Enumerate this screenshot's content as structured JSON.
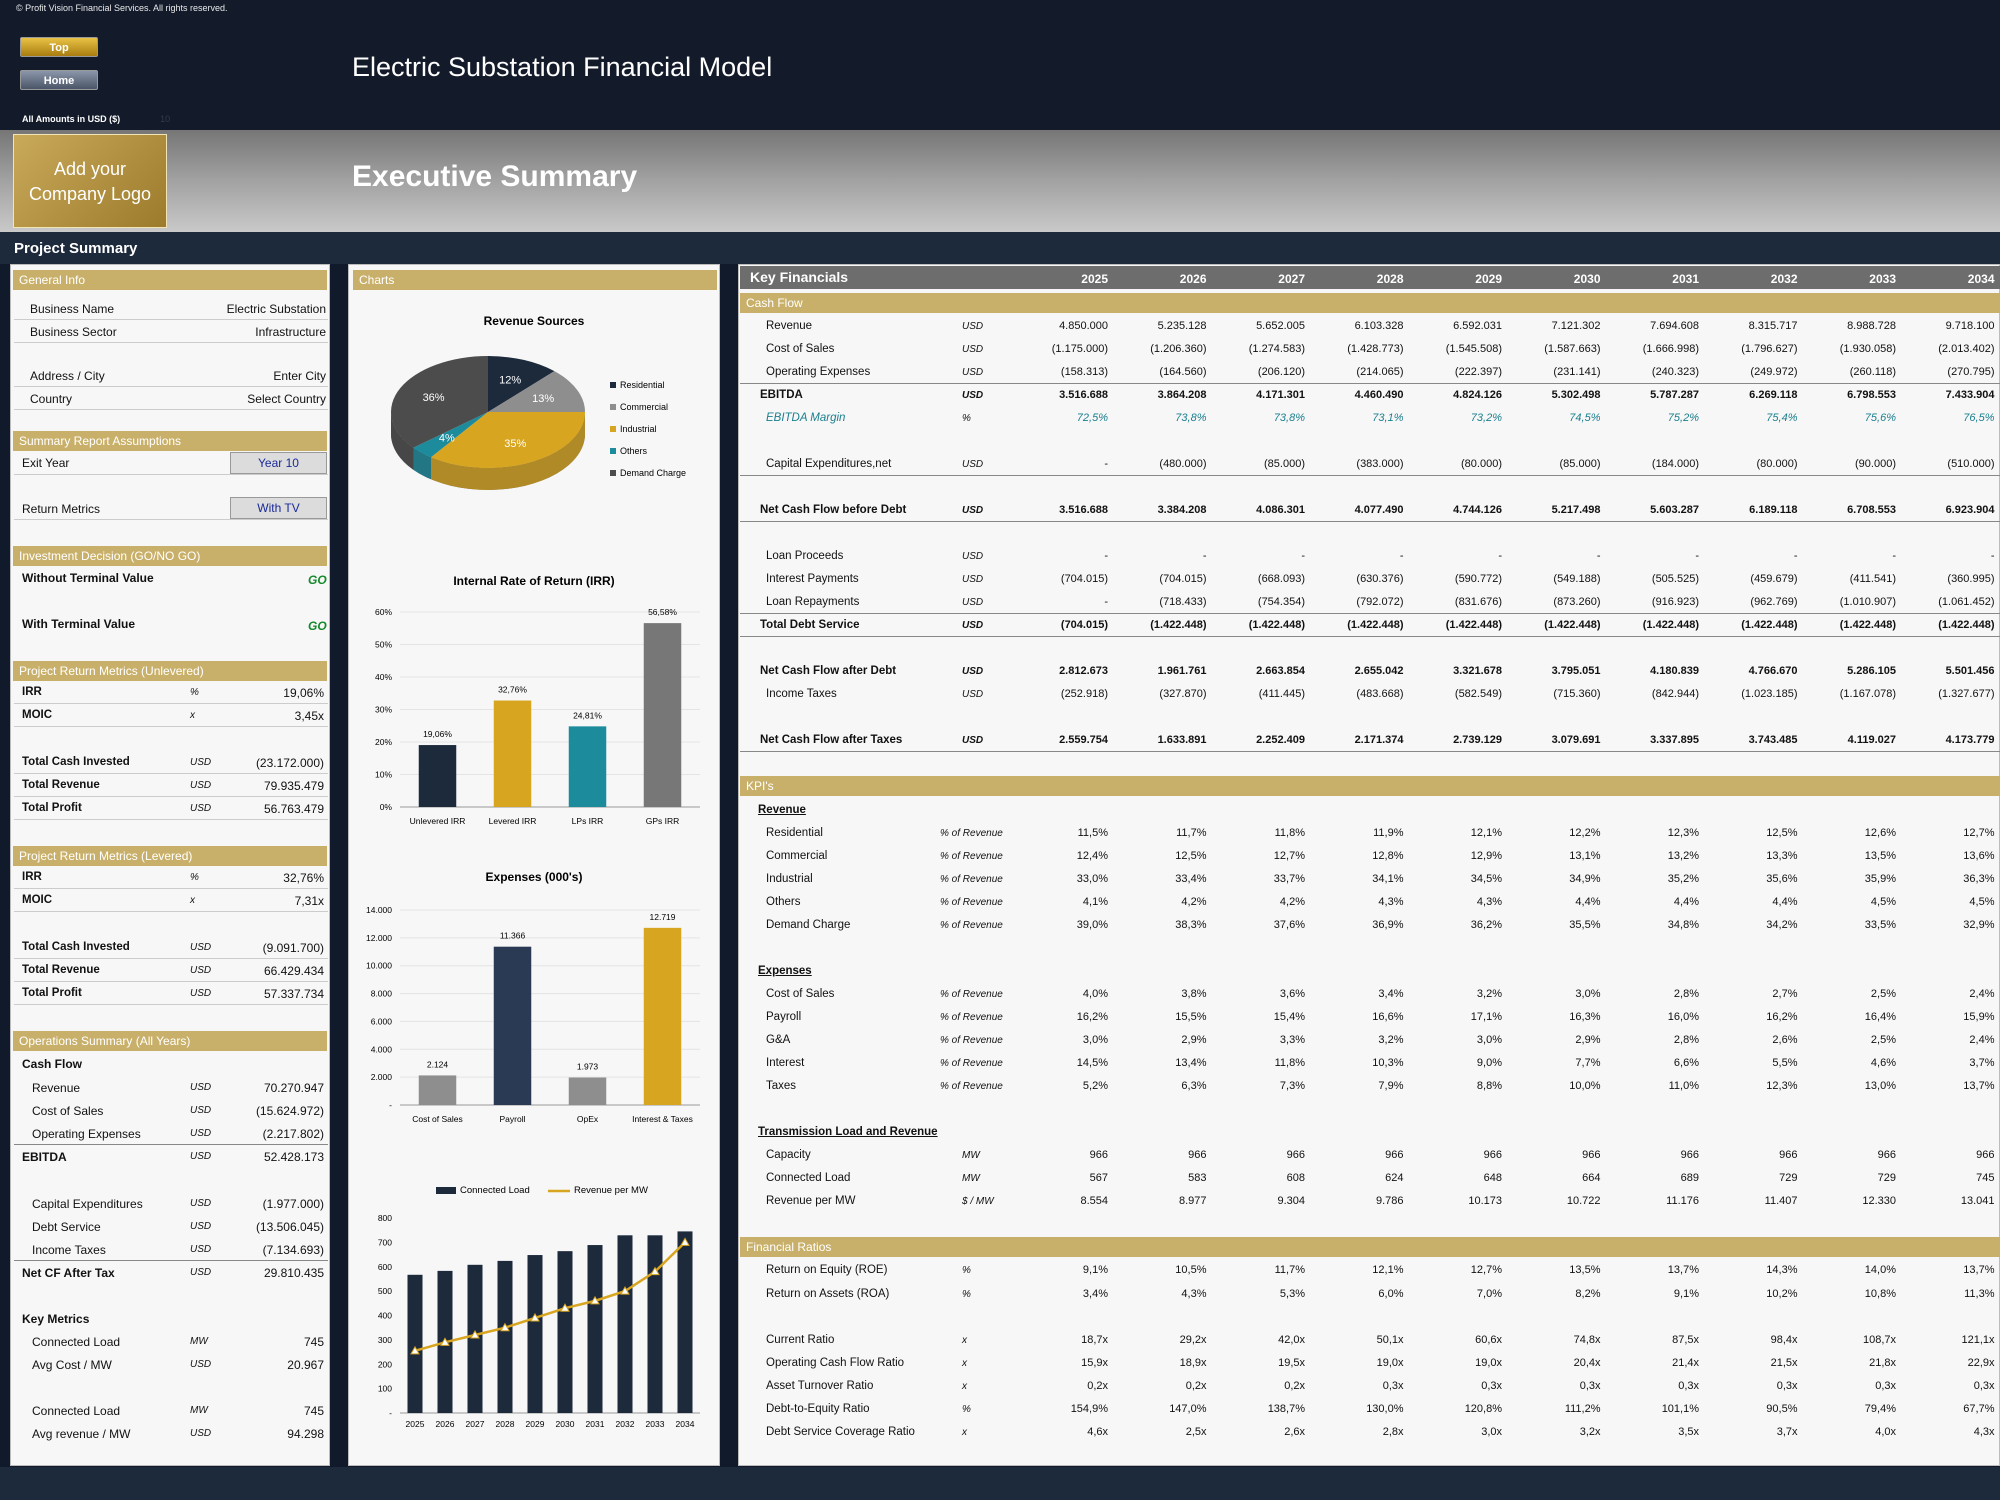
{
  "copyright": "© Profit Vision Financial Services. All rights reserved.",
  "nav": {
    "top": "Top",
    "home": "Home"
  },
  "model_title": "Electric Substation Financial Model",
  "amounts_label": "All Amounts in  USD ($)",
  "amounts_hint": "10",
  "logo_text": "Add your Company Logo",
  "section_title": "Executive Summary",
  "project_summary": "Project Summary",
  "general": {
    "title": "General Info",
    "business_name_label": "Business Name",
    "business_name": "Electric Substation",
    "business_sector_label": "Business Sector",
    "business_sector": "Infrastructure",
    "address_label": "Address / City",
    "address": "Enter City",
    "country_label": "Country",
    "country": "Select Country"
  },
  "assumptions": {
    "title": "Summary  Report Assumptions",
    "exit_label": "Exit Year",
    "exit_value": "Year 10",
    "return_label": "Return Metrics",
    "return_value": "With TV"
  },
  "investment": {
    "title": "Investment Decision (GO/NO GO)",
    "without_label": "Without Terminal Value",
    "without_value": "GO",
    "with_label": "With Terminal Value",
    "with_value": "GO"
  },
  "unlevered": {
    "title": "Project Return Metrics (Unlevered)",
    "rows": [
      {
        "label": "IRR",
        "unit": "%",
        "value": "19,06%"
      },
      {
        "label": "MOIC",
        "unit": "x",
        "value": "3,45x"
      },
      {
        "label": "Total Cash Invested",
        "unit": "USD",
        "value": "(23.172.000)"
      },
      {
        "label": "Total Revenue",
        "unit": "USD",
        "value": "79.935.479"
      },
      {
        "label": "Total Profit",
        "unit": "USD",
        "value": "56.763.479"
      }
    ]
  },
  "levered": {
    "title": "Project Return Metrics (Levered)",
    "rows": [
      {
        "label": "IRR",
        "unit": "%",
        "value": "32,76%"
      },
      {
        "label": "MOIC",
        "unit": "x",
        "value": "7,31x"
      },
      {
        "label": "Total Cash Invested",
        "unit": "USD",
        "value": "(9.091.700)"
      },
      {
        "label": "Total Revenue",
        "unit": "USD",
        "value": "66.429.434"
      },
      {
        "label": "Total Profit",
        "unit": "USD",
        "value": "57.337.734"
      }
    ]
  },
  "operations": {
    "title": "Operations Summary (All Years)",
    "cash_flow_label": "Cash Flow",
    "rows": [
      {
        "label": "Revenue",
        "unit": "USD",
        "value": "70.270.947"
      },
      {
        "label": "Cost of Sales",
        "unit": "USD",
        "value": "(15.624.972)"
      },
      {
        "label": "Operating Expenses",
        "unit": "USD",
        "value": "(2.217.802)"
      },
      {
        "label": "EBITDA",
        "unit": "USD",
        "value": "52.428.173"
      },
      {
        "label": "Capital Expenditures",
        "unit": "USD",
        "value": "(1.977.000)"
      },
      {
        "label": "Debt Service",
        "unit": "USD",
        "value": "(13.506.045)"
      },
      {
        "label": "Income Taxes",
        "unit": "USD",
        "value": "(7.134.693)"
      },
      {
        "label": "Net CF After Tax",
        "unit": "USD",
        "value": "29.810.435"
      }
    ],
    "key_metrics_label": "Key Metrics",
    "metrics": [
      {
        "label": "Connected Load",
        "unit": "MW",
        "value": "745"
      },
      {
        "label": "Avg Cost / MW",
        "unit": "USD",
        "value": "20.967"
      },
      {
        "label": "Connected Load",
        "unit": "MW",
        "value": "745"
      },
      {
        "label": "Avg revenue / MW",
        "unit": "USD",
        "value": "94.298"
      }
    ]
  },
  "charts_title": "Charts",
  "chart_data": [
    {
      "type": "pie",
      "title": "Revenue Sources",
      "categories": [
        "Residential",
        "Commercial",
        "Industrial",
        "Others",
        "Demand Charge"
      ],
      "values": [
        12,
        13,
        35,
        4,
        36
      ],
      "value_labels": [
        "12%",
        "13%",
        "35%",
        "4%",
        "36%"
      ],
      "colors": [
        "#1d2a3c",
        "#8e8e8e",
        "#d8a520",
        "#1c8b9c",
        "#4c4c4c"
      ],
      "legend": "right"
    },
    {
      "type": "bar",
      "title": "Internal Rate of Return (IRR)",
      "categories": [
        "Unlevered IRR",
        "Levered IRR",
        "LPs IRR",
        "GPs IRR"
      ],
      "values": [
        19.06,
        32.76,
        24.81,
        56.58
      ],
      "value_labels": [
        "19,06%",
        "32,76%",
        "24,81%",
        "56,58%"
      ],
      "ylim": [
        0,
        60
      ],
      "yticks": [
        "0%",
        "10%",
        "20%",
        "30%",
        "40%",
        "50%",
        "60%"
      ],
      "colors": [
        "#1d2a3c",
        "#d8a520",
        "#1c8b9c",
        "#777777"
      ]
    },
    {
      "type": "bar",
      "title": "Expenses (000's)",
      "categories": [
        "Cost of Sales",
        "Payroll",
        "OpEx",
        "Interest & Taxes"
      ],
      "values": [
        2124,
        11366,
        1973,
        12719
      ],
      "value_labels": [
        "2.124",
        "11.366",
        "1.973",
        "12.719"
      ],
      "ylim": [
        0,
        14000
      ],
      "yticks": [
        "-",
        "2.000",
        "4.000",
        "6.000",
        "8.000",
        "10.000",
        "12.000",
        "14.000"
      ],
      "colors": [
        "#8e8e8e",
        "#2b3a54",
        "#8e8e8e",
        "#d8a520"
      ]
    },
    {
      "type": "bar",
      "title": "",
      "categories": [
        "2025",
        "2026",
        "2027",
        "2028",
        "2029",
        "2030",
        "2031",
        "2032",
        "2033",
        "2034"
      ],
      "series": [
        {
          "name": "Connected Load",
          "values": [
            567,
            583,
            608,
            624,
            648,
            664,
            689,
            729,
            729,
            745
          ],
          "color": "#1d2a3c"
        },
        {
          "name": "Revenue per MW",
          "values": [
            255,
            290,
            320,
            350,
            390,
            430,
            460,
            500,
            580,
            700
          ],
          "color": "#d8a520"
        }
      ],
      "ylim": [
        0,
        800
      ],
      "yticks": [
        "-",
        "100",
        "200",
        "300",
        "400",
        "500",
        "600",
        "700",
        "800"
      ],
      "legend": "top"
    }
  ],
  "kf": {
    "title": "Key Financials",
    "years": [
      "2025",
      "2026",
      "2027",
      "2028",
      "2029",
      "2030",
      "2031",
      "2032",
      "2033",
      "2034"
    ]
  },
  "cashflow": {
    "title": "Cash Flow",
    "rows": [
      {
        "label": "Revenue",
        "unit": "USD",
        "vals": [
          "4.850.000",
          "5.235.128",
          "5.652.005",
          "6.103.328",
          "6.592.031",
          "7.121.302",
          "7.694.608",
          "8.315.717",
          "8.988.728",
          "9.718.100"
        ]
      },
      {
        "label": "Cost of Sales",
        "unit": "USD",
        "vals": [
          "(1.175.000)",
          "(1.206.360)",
          "(1.274.583)",
          "(1.428.773)",
          "(1.545.508)",
          "(1.587.663)",
          "(1.666.998)",
          "(1.796.627)",
          "(1.930.058)",
          "(2.013.402)"
        ]
      },
      {
        "label": "Operating Expenses",
        "unit": "USD",
        "vals": [
          "(158.313)",
          "(164.560)",
          "(206.120)",
          "(214.065)",
          "(222.397)",
          "(231.141)",
          "(240.323)",
          "(249.972)",
          "(260.118)",
          "(270.795)"
        ]
      },
      {
        "label": "EBITDA",
        "unit": "USD",
        "vals": [
          "3.516.688",
          "3.864.208",
          "4.171.301",
          "4.460.490",
          "4.824.126",
          "5.302.498",
          "5.787.287",
          "6.269.118",
          "6.798.553",
          "7.433.904"
        ]
      },
      {
        "label": "EBITDA Margin",
        "unit": "%",
        "vals": [
          "72,5%",
          "73,8%",
          "73,8%",
          "73,1%",
          "73,2%",
          "74,5%",
          "75,2%",
          "75,4%",
          "75,6%",
          "76,5%"
        ]
      },
      {
        "label": "Capital Expenditures,net",
        "unit": "USD",
        "vals": [
          "-",
          "(480.000)",
          "(85.000)",
          "(383.000)",
          "(80.000)",
          "(85.000)",
          "(184.000)",
          "(80.000)",
          "(90.000)",
          "(510.000)"
        ]
      },
      {
        "label": "Net Cash Flow before Debt",
        "unit": "USD",
        "vals": [
          "3.516.688",
          "3.384.208",
          "4.086.301",
          "4.077.490",
          "4.744.126",
          "5.217.498",
          "5.603.287",
          "6.189.118",
          "6.708.553",
          "6.923.904"
        ]
      },
      {
        "label": "Loan Proceeds",
        "unit": "USD",
        "vals": [
          "-",
          "-",
          "-",
          "-",
          "-",
          "-",
          "-",
          "-",
          "-",
          "-"
        ]
      },
      {
        "label": "Interest Payments",
        "unit": "USD",
        "vals": [
          "(704.015)",
          "(704.015)",
          "(668.093)",
          "(630.376)",
          "(590.772)",
          "(549.188)",
          "(505.525)",
          "(459.679)",
          "(411.541)",
          "(360.995)"
        ]
      },
      {
        "label": "Loan Repayments",
        "unit": "USD",
        "vals": [
          "-",
          "(718.433)",
          "(754.354)",
          "(792.072)",
          "(831.676)",
          "(873.260)",
          "(916.923)",
          "(962.769)",
          "(1.010.907)",
          "(1.061.452)"
        ]
      },
      {
        "label": "Total Debt Service",
        "unit": "USD",
        "vals": [
          "(704.015)",
          "(1.422.448)",
          "(1.422.448)",
          "(1.422.448)",
          "(1.422.448)",
          "(1.422.448)",
          "(1.422.448)",
          "(1.422.448)",
          "(1.422.448)",
          "(1.422.448)"
        ]
      },
      {
        "label": "Net Cash Flow after Debt",
        "unit": "USD",
        "vals": [
          "2.812.673",
          "1.961.761",
          "2.663.854",
          "2.655.042",
          "3.321.678",
          "3.795.051",
          "4.180.839",
          "4.766.670",
          "5.286.105",
          "5.501.456"
        ]
      },
      {
        "label": "Income Taxes",
        "unit": "USD",
        "vals": [
          "(252.918)",
          "(327.870)",
          "(411.445)",
          "(483.668)",
          "(582.549)",
          "(715.360)",
          "(842.944)",
          "(1.023.185)",
          "(1.167.078)",
          "(1.327.677)"
        ]
      },
      {
        "label": "Net Cash Flow after Taxes",
        "unit": "USD",
        "vals": [
          "2.559.754",
          "1.633.891",
          "2.252.409",
          "2.171.374",
          "2.739.129",
          "3.079.691",
          "3.337.895",
          "3.743.485",
          "4.119.027",
          "4.173.779"
        ]
      }
    ]
  },
  "kpis": {
    "title": "KPI's",
    "revenue_label": "Revenue",
    "revenue": [
      {
        "label": "Residential",
        "unit": "% of Revenue",
        "vals": [
          "11,5%",
          "11,7%",
          "11,8%",
          "11,9%",
          "12,1%",
          "12,2%",
          "12,3%",
          "12,5%",
          "12,6%",
          "12,7%"
        ]
      },
      {
        "label": "Commercial",
        "unit": "% of Revenue",
        "vals": [
          "12,4%",
          "12,5%",
          "12,7%",
          "12,8%",
          "12,9%",
          "13,1%",
          "13,2%",
          "13,3%",
          "13,5%",
          "13,6%"
        ]
      },
      {
        "label": "Industrial",
        "unit": "% of Revenue",
        "vals": [
          "33,0%",
          "33,4%",
          "33,7%",
          "34,1%",
          "34,5%",
          "34,9%",
          "35,2%",
          "35,6%",
          "35,9%",
          "36,3%"
        ]
      },
      {
        "label": "Others",
        "unit": "% of Revenue",
        "vals": [
          "4,1%",
          "4,2%",
          "4,2%",
          "4,3%",
          "4,3%",
          "4,4%",
          "4,4%",
          "4,4%",
          "4,5%",
          "4,5%"
        ]
      },
      {
        "label": "Demand Charge",
        "unit": "% of Revenue",
        "vals": [
          "39,0%",
          "38,3%",
          "37,6%",
          "36,9%",
          "36,2%",
          "35,5%",
          "34,8%",
          "34,2%",
          "33,5%",
          "32,9%"
        ]
      }
    ],
    "expenses_label": "Expenses",
    "expenses": [
      {
        "label": "Cost of Sales",
        "unit": "% of Revenue",
        "vals": [
          "4,0%",
          "3,8%",
          "3,6%",
          "3,4%",
          "3,2%",
          "3,0%",
          "2,8%",
          "2,7%",
          "2,5%",
          "2,4%"
        ]
      },
      {
        "label": "Payroll",
        "unit": "% of Revenue",
        "vals": [
          "16,2%",
          "15,5%",
          "15,4%",
          "16,6%",
          "17,1%",
          "16,3%",
          "16,0%",
          "16,2%",
          "16,4%",
          "15,9%"
        ]
      },
      {
        "label": "G&A",
        "unit": "% of Revenue",
        "vals": [
          "3,0%",
          "2,9%",
          "3,3%",
          "3,2%",
          "3,0%",
          "2,9%",
          "2,8%",
          "2,6%",
          "2,5%",
          "2,4%"
        ]
      },
      {
        "label": "Interest",
        "unit": "% of Revenue",
        "vals": [
          "14,5%",
          "13,4%",
          "11,8%",
          "10,3%",
          "9,0%",
          "7,7%",
          "6,6%",
          "5,5%",
          "4,6%",
          "3,7%"
        ]
      },
      {
        "label": "Taxes",
        "unit": "% of Revenue",
        "vals": [
          "5,2%",
          "6,3%",
          "7,3%",
          "7,9%",
          "8,8%",
          "10,0%",
          "11,0%",
          "12,3%",
          "13,0%",
          "13,7%"
        ]
      }
    ],
    "transmission_label": "Transmission Load and Revenue",
    "transmission": [
      {
        "label": "Capacity",
        "unit": "MW",
        "vals": [
          "966",
          "966",
          "966",
          "966",
          "966",
          "966",
          "966",
          "966",
          "966",
          "966"
        ]
      },
      {
        "label": "Connected Load",
        "unit": "MW",
        "vals": [
          "567",
          "583",
          "608",
          "624",
          "648",
          "664",
          "689",
          "729",
          "729",
          "745"
        ]
      },
      {
        "label": "Revenue per MW",
        "unit": "$ / MW",
        "vals": [
          "8.554",
          "8.977",
          "9.304",
          "9.786",
          "10.173",
          "10.722",
          "11.176",
          "11.407",
          "12.330",
          "13.041"
        ]
      }
    ]
  },
  "ratios": {
    "title": "Financial Ratios",
    "rows": [
      {
        "label": "Return on Equity (ROE)",
        "unit": "%",
        "vals": [
          "9,1%",
          "10,5%",
          "11,7%",
          "12,1%",
          "12,7%",
          "13,5%",
          "13,7%",
          "14,3%",
          "14,0%",
          "13,7%"
        ]
      },
      {
        "label": "Return on Assets (ROA)",
        "unit": "%",
        "vals": [
          "3,4%",
          "4,3%",
          "5,3%",
          "6,0%",
          "7,0%",
          "8,2%",
          "9,1%",
          "10,2%",
          "10,8%",
          "11,3%"
        ]
      },
      {
        "label": "Current Ratio",
        "unit": "x",
        "vals": [
          "18,7x",
          "29,2x",
          "42,0x",
          "50,1x",
          "60,6x",
          "74,8x",
          "87,5x",
          "98,4x",
          "108,7x",
          "121,1x"
        ]
      },
      {
        "label": "Operating Cash Flow Ratio",
        "unit": "x",
        "vals": [
          "15,9x",
          "18,9x",
          "19,5x",
          "19,0x",
          "19,0x",
          "20,4x",
          "21,4x",
          "21,5x",
          "21,8x",
          "22,9x"
        ]
      },
      {
        "label": "Asset Turnover Ratio",
        "unit": "x",
        "vals": [
          "0,2x",
          "0,2x",
          "0,2x",
          "0,3x",
          "0,3x",
          "0,3x",
          "0,3x",
          "0,3x",
          "0,3x",
          "0,3x"
        ]
      },
      {
        "label": "Debt-to-Equity Ratio",
        "unit": "%",
        "vals": [
          "154,9%",
          "147,0%",
          "138,7%",
          "130,0%",
          "120,8%",
          "111,2%",
          "101,1%",
          "90,5%",
          "79,4%",
          "67,7%"
        ]
      },
      {
        "label": "Debt Service Coverage Ratio",
        "unit": "x",
        "vals": [
          "4,6x",
          "2,5x",
          "2,6x",
          "2,8x",
          "3,0x",
          "3,2x",
          "3,5x",
          "3,7x",
          "4,0x",
          "4,3x"
        ]
      }
    ]
  }
}
